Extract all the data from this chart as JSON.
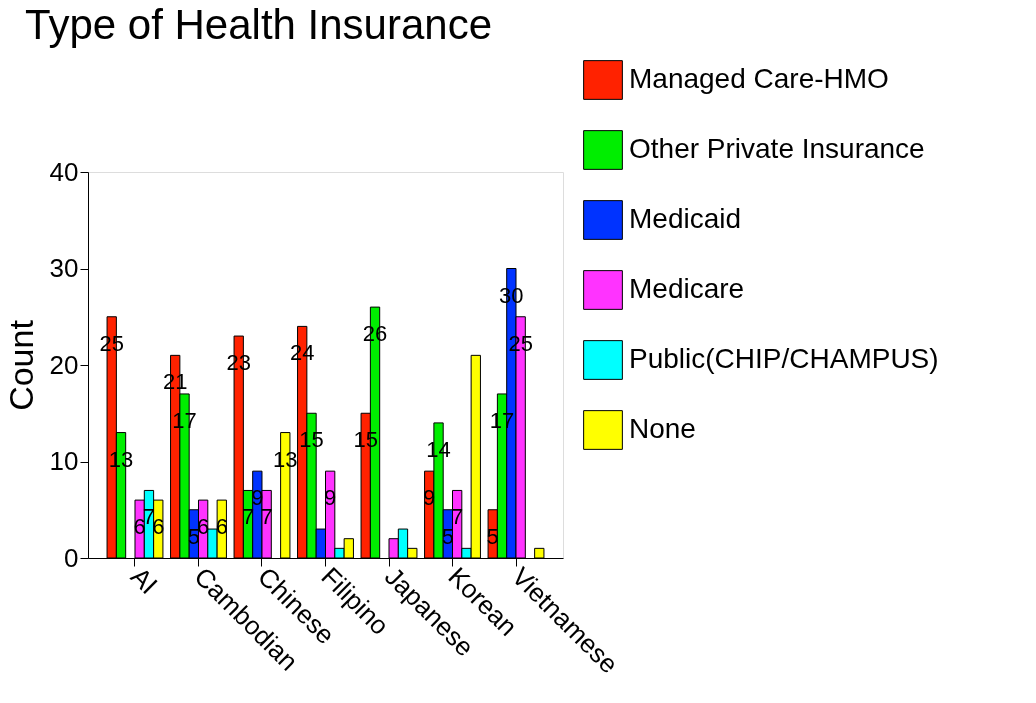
{
  "chart_data": {
    "type": "bar",
    "title": "Type of Health Insurance",
    "ylabel": "Count",
    "categories": [
      "AI",
      "Cambodian",
      "Chinese",
      "Filipino",
      "Japanese",
      "Korean",
      "Vietnamese"
    ],
    "series": [
      {
        "name": "Managed Care-HMO",
        "color": "#ff2200",
        "values": [
          25,
          21,
          23,
          24,
          15,
          9,
          5
        ],
        "value_labels": [
          "25",
          "21",
          "23",
          "24",
          "15",
          "9",
          "5"
        ]
      },
      {
        "name": "Other Private Insurance",
        "color": "#00ee00",
        "values": [
          13,
          17,
          7,
          15,
          26,
          14,
          17
        ],
        "value_labels": [
          "13",
          "17",
          "7",
          "15",
          "26",
          "14",
          "17"
        ]
      },
      {
        "name": "Medicaid",
        "color": "#0033ff",
        "values": [
          null,
          5,
          9,
          3,
          null,
          5,
          30
        ],
        "value_labels": [
          null,
          "5",
          "9",
          null,
          null,
          "5",
          "30"
        ]
      },
      {
        "name": "Medicare",
        "color": "#ff33ff",
        "values": [
          6,
          6,
          7,
          9,
          2,
          7,
          25
        ],
        "value_labels": [
          "6",
          "6",
          "7",
          "9",
          null,
          "7",
          "25"
        ]
      },
      {
        "name": "Public(CHIP/CHAMPUS)",
        "color": "#00ffff",
        "values": [
          7,
          3,
          null,
          1,
          3,
          1,
          null
        ],
        "value_labels": [
          "7",
          null,
          null,
          null,
          null,
          null,
          null
        ]
      },
      {
        "name": "None",
        "color": "#ffff00",
        "values": [
          6,
          6,
          13,
          2,
          1,
          21,
          1
        ],
        "value_labels": [
          "6",
          "6",
          "13",
          null,
          null,
          null,
          null
        ]
      }
    ],
    "ylim": [
      0,
      40
    ],
    "yticks": [
      0,
      10,
      20,
      30,
      40
    ],
    "grid": false,
    "legend": "top right"
  }
}
